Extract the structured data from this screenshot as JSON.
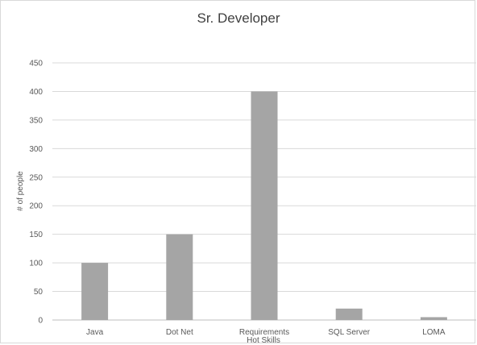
{
  "chart_data": {
    "type": "bar",
    "title": "Sr. Developer",
    "xlabel": "Hot Skills",
    "ylabel": "# of people",
    "categories": [
      "Java",
      "Dot Net",
      "Requirements",
      "SQL Server",
      "LOMA"
    ],
    "values": [
      100,
      150,
      400,
      20,
      5
    ],
    "ylim": [
      0,
      450
    ],
    "yticks": [
      "0",
      "50",
      "100",
      "150",
      "200",
      "250",
      "300",
      "350",
      "400",
      "450"
    ],
    "grid": true,
    "legend": "none",
    "colors": {
      "bar": "#a5a5a5",
      "grid": "#d9d9d9",
      "axis": "#bfbfbf"
    }
  }
}
